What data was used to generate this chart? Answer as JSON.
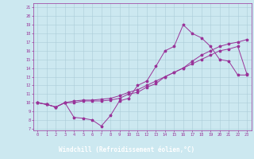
{
  "xlabel": "Windchill (Refroidissement éolien,°C)",
  "bg_color": "#cce8f0",
  "grid_color": "#aaccd8",
  "line_color": "#993399",
  "xlabel_bg": "#6633aa",
  "xlabel_fg": "#ffffff",
  "xlim": [
    -0.5,
    23.5
  ],
  "ylim": [
    6.8,
    21.5
  ],
  "xticks": [
    0,
    1,
    2,
    3,
    4,
    5,
    6,
    7,
    8,
    9,
    10,
    11,
    12,
    13,
    14,
    15,
    16,
    17,
    18,
    19,
    20,
    21,
    22,
    23
  ],
  "yticks": [
    7,
    8,
    9,
    10,
    11,
    12,
    13,
    14,
    15,
    16,
    17,
    18,
    19,
    20,
    21
  ],
  "line1_x": [
    0,
    1,
    2,
    3,
    4,
    5,
    6,
    7,
    8,
    9,
    10,
    11,
    12,
    13,
    14,
    15,
    16,
    17,
    18,
    19,
    20,
    21,
    22,
    23
  ],
  "line1_y": [
    10.0,
    9.8,
    9.5,
    10.0,
    8.3,
    8.2,
    8.0,
    7.3,
    8.5,
    10.2,
    10.5,
    12.0,
    12.5,
    14.2,
    16.0,
    16.5,
    19.0,
    18.0,
    17.5,
    16.5,
    15.0,
    14.8,
    13.2,
    13.2
  ],
  "line2_x": [
    0,
    1,
    2,
    3,
    4,
    5,
    6,
    7,
    8,
    9,
    10,
    11,
    12,
    13,
    14,
    15,
    16,
    17,
    18,
    19,
    20,
    21,
    22,
    23
  ],
  "line2_y": [
    10.0,
    9.8,
    9.5,
    10.0,
    10.0,
    10.2,
    10.2,
    10.2,
    10.3,
    10.5,
    11.0,
    11.2,
    11.8,
    12.2,
    13.0,
    13.5,
    14.0,
    14.5,
    15.0,
    15.5,
    16.0,
    16.2,
    16.5,
    13.3
  ],
  "line3_x": [
    0,
    1,
    2,
    3,
    4,
    5,
    6,
    7,
    8,
    9,
    10,
    11,
    12,
    13,
    14,
    15,
    16,
    17,
    18,
    19,
    20,
    21,
    22,
    23
  ],
  "line3_y": [
    10.0,
    9.8,
    9.5,
    10.0,
    10.2,
    10.3,
    10.3,
    10.4,
    10.5,
    10.8,
    11.2,
    11.5,
    12.0,
    12.5,
    13.0,
    13.5,
    14.0,
    14.8,
    15.5,
    16.0,
    16.5,
    16.8,
    17.0,
    17.3
  ]
}
